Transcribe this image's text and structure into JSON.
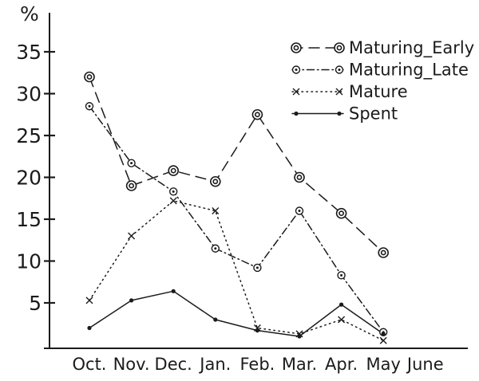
{
  "page": {
    "background_color": "#ffffff",
    "ink_color": "#1b1b1b"
  },
  "chart_data": {
    "type": "line",
    "title": "",
    "xlabel": "",
    "ylabel": "%",
    "x_categories": [
      "Oct.",
      "Nov.",
      "Dec.",
      "Jan.",
      "Feb.",
      "Mar.",
      "Apr.",
      "May",
      "June"
    ],
    "y_ticks": [
      5,
      10,
      15,
      20,
      25,
      30,
      35
    ],
    "ylim": [
      0,
      37
    ],
    "grid": false,
    "legend_position": "top-right",
    "series": [
      {
        "name": "Maturing_Early",
        "marker": "double-circle",
        "line_style": "dashed",
        "values": [
          32,
          19,
          20.8,
          19.5,
          27.5,
          20,
          15.7,
          11,
          null
        ]
      },
      {
        "name": "Maturing_Late",
        "marker": "circle-dot",
        "line_style": "dash-dot",
        "values": [
          28.5,
          21.7,
          18.3,
          11.5,
          9.2,
          16,
          8.3,
          1.5,
          null
        ]
      },
      {
        "name": "Mature",
        "marker": "x-cross",
        "line_style": "dotted",
        "values": [
          5.3,
          13,
          17.2,
          16,
          2,
          1.3,
          3,
          0.5,
          null
        ]
      },
      {
        "name": "Spent",
        "marker": "dot",
        "line_style": "solid",
        "values": [
          2,
          5.3,
          6.4,
          3,
          1.7,
          1,
          4.8,
          1.3,
          null
        ]
      }
    ]
  }
}
